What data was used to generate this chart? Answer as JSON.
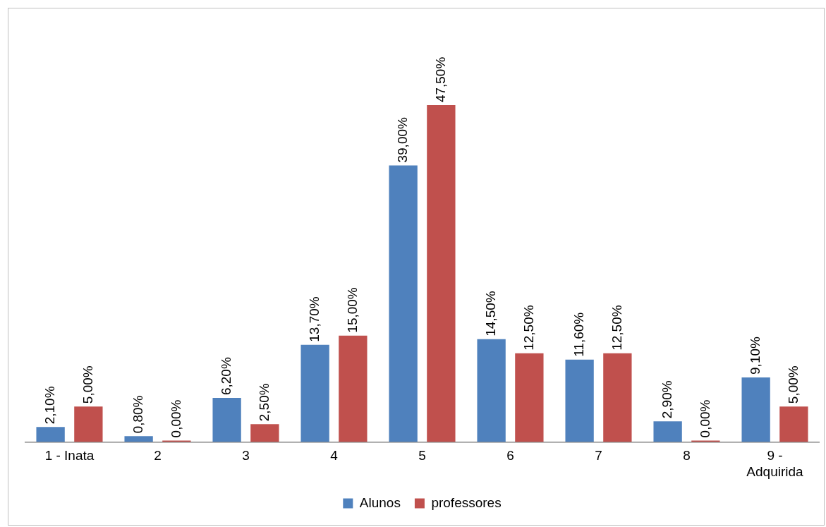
{
  "chart_data": {
    "type": "bar",
    "categories": [
      "1 - Inata",
      "2",
      "3",
      "4",
      "5",
      "6",
      "7",
      "8",
      "9 - Adquirida"
    ],
    "series": [
      {
        "name": "Alunos",
        "color": "#4f81bd",
        "values": [
          2.1,
          0.8,
          6.2,
          13.7,
          39.0,
          14.5,
          11.6,
          2.9,
          9.1
        ],
        "value_labels": [
          "2,10%",
          "0,80%",
          "6,20%",
          "13,70%",
          "39,00%",
          "14,50%",
          "11,60%",
          "2,90%",
          "9,10%"
        ]
      },
      {
        "name": "professores",
        "color": "#c0504d",
        "values": [
          5.0,
          0.0,
          2.5,
          15.0,
          47.5,
          12.5,
          12.5,
          0.0,
          5.0
        ],
        "value_labels": [
          "5,00%",
          "0,00%",
          "2,50%",
          "15,00%",
          "47,50%",
          "12,50%",
          "12,50%",
          "0,00%",
          "5,00%"
        ]
      }
    ],
    "grid": false,
    "legend": "bottom"
  }
}
